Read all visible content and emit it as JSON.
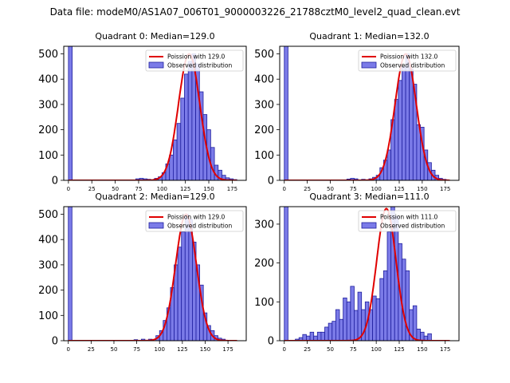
{
  "figure_title": "Data file: modeM0/AS1A07_006T01_9000003226_21788cztM0_level2_quad_clean.evt",
  "colors": {
    "bar_fill": "#7b7be8",
    "bar_edge": "#1e1e9e",
    "fit_line": "#e00000"
  },
  "chart_data": [
    {
      "type": "bar",
      "title": "Quadrant 0: Median=129.0",
      "legend_position": "upper-right",
      "legend": {
        "fit": "Poission with 129.0",
        "observed": "Observed distribution"
      },
      "bin_width": 4,
      "xlim": [
        -5,
        190
      ],
      "ylim": [
        0,
        530
      ],
      "xticks": [
        0,
        25,
        50,
        75,
        100,
        125,
        150,
        175
      ],
      "yticks": [
        0,
        100,
        200,
        300,
        400,
        500
      ],
      "bins": [
        [
          0,
          530
        ],
        [
          72,
          6
        ],
        [
          76,
          8
        ],
        [
          80,
          6
        ],
        [
          84,
          4
        ],
        [
          92,
          8
        ],
        [
          96,
          14
        ],
        [
          100,
          30
        ],
        [
          104,
          65
        ],
        [
          108,
          100
        ],
        [
          112,
          160
        ],
        [
          116,
          225
        ],
        [
          120,
          325
        ],
        [
          124,
          420
        ],
        [
          128,
          470
        ],
        [
          132,
          500
        ],
        [
          136,
          460
        ],
        [
          140,
          350
        ],
        [
          144,
          260
        ],
        [
          148,
          200
        ],
        [
          152,
          130
        ],
        [
          156,
          60
        ],
        [
          160,
          40
        ],
        [
          164,
          20
        ],
        [
          168,
          10
        ],
        [
          172,
          6
        ],
        [
          176,
          3
        ]
      ],
      "poisson_mean": 129.0,
      "poisson_peak": 500,
      "fit_range": [
        0,
        180
      ]
    },
    {
      "type": "bar",
      "title": "Quadrant 1: Median=132.0",
      "legend_position": "upper-right",
      "legend": {
        "fit": "Poission with 132.0",
        "observed": "Observed distribution"
      },
      "bin_width": 4,
      "xlim": [
        -5,
        190
      ],
      "ylim": [
        0,
        530
      ],
      "xticks": [
        0,
        25,
        50,
        75,
        100,
        125,
        150,
        175
      ],
      "yticks": [
        0,
        100,
        200,
        300,
        400,
        500
      ],
      "bins": [
        [
          0,
          530
        ],
        [
          68,
          5
        ],
        [
          72,
          8
        ],
        [
          76,
          6
        ],
        [
          84,
          4
        ],
        [
          92,
          6
        ],
        [
          96,
          12
        ],
        [
          100,
          20
        ],
        [
          104,
          50
        ],
        [
          108,
          80
        ],
        [
          112,
          120
        ],
        [
          116,
          240
        ],
        [
          120,
          320
        ],
        [
          124,
          395
        ],
        [
          128,
          450
        ],
        [
          132,
          500
        ],
        [
          136,
          440
        ],
        [
          140,
          380
        ],
        [
          144,
          220
        ],
        [
          148,
          210
        ],
        [
          152,
          120
        ],
        [
          156,
          70
        ],
        [
          160,
          40
        ],
        [
          164,
          20
        ],
        [
          168,
          8
        ],
        [
          172,
          4
        ]
      ],
      "poisson_mean": 132.0,
      "poisson_peak": 500,
      "fit_range": [
        0,
        180
      ]
    },
    {
      "type": "bar",
      "title": "Quadrant 2: Median=129.0",
      "legend_position": "upper-right",
      "legend": {
        "fit": "Poission with 129.0",
        "observed": "Observed distribution"
      },
      "bin_width": 4,
      "xlim": [
        -5,
        195
      ],
      "ylim": [
        0,
        530
      ],
      "xticks": [
        0,
        25,
        50,
        75,
        100,
        125,
        150,
        175
      ],
      "yticks": [
        0,
        100,
        200,
        300,
        400,
        500
      ],
      "bins": [
        [
          0,
          530
        ],
        [
          72,
          4
        ],
        [
          80,
          6
        ],
        [
          88,
          6
        ],
        [
          96,
          20
        ],
        [
          100,
          40
        ],
        [
          104,
          80
        ],
        [
          108,
          130
        ],
        [
          112,
          210
        ],
        [
          116,
          300
        ],
        [
          120,
          370
        ],
        [
          124,
          430
        ],
        [
          128,
          500
        ],
        [
          132,
          480
        ],
        [
          136,
          390
        ],
        [
          140,
          300
        ],
        [
          144,
          220
        ],
        [
          148,
          110
        ],
        [
          152,
          60
        ],
        [
          156,
          40
        ],
        [
          160,
          20
        ],
        [
          164,
          10
        ],
        [
          168,
          6
        ]
      ],
      "poisson_mean": 129.0,
      "poisson_peak": 500,
      "fit_range": [
        0,
        185
      ]
    },
    {
      "type": "bar",
      "title": "Quadrant 3: Median=111.0",
      "legend_position": "upper-right",
      "legend": {
        "fit": "Poission with 111.0",
        "observed": "Observed distribution"
      },
      "bin_width": 4,
      "xlim": [
        -5,
        190
      ],
      "ylim": [
        0,
        345
      ],
      "xticks": [
        0,
        25,
        50,
        75,
        100,
        125,
        150,
        175
      ],
      "yticks": [
        0,
        100,
        200,
        300
      ],
      "bins": [
        [
          0,
          345
        ],
        [
          12,
          4
        ],
        [
          16,
          8
        ],
        [
          20,
          16
        ],
        [
          24,
          12
        ],
        [
          28,
          22
        ],
        [
          32,
          12
        ],
        [
          36,
          22
        ],
        [
          40,
          22
        ],
        [
          44,
          35
        ],
        [
          48,
          45
        ],
        [
          52,
          50
        ],
        [
          56,
          80
        ],
        [
          60,
          55
        ],
        [
          64,
          110
        ],
        [
          68,
          100
        ],
        [
          72,
          140
        ],
        [
          76,
          78
        ],
        [
          80,
          125
        ],
        [
          84,
          80
        ],
        [
          88,
          100
        ],
        [
          92,
          80
        ],
        [
          96,
          115
        ],
        [
          100,
          108
        ],
        [
          104,
          160
        ],
        [
          108,
          180
        ],
        [
          112,
          280
        ],
        [
          116,
          350
        ],
        [
          120,
          320
        ],
        [
          124,
          250
        ],
        [
          128,
          210
        ],
        [
          132,
          180
        ],
        [
          136,
          80
        ],
        [
          140,
          90
        ],
        [
          144,
          30
        ],
        [
          148,
          22
        ],
        [
          152,
          12
        ],
        [
          156,
          18
        ]
      ],
      "poisson_mean": 111.0,
      "poisson_peak": 340,
      "fit_range": [
        0,
        180
      ]
    }
  ]
}
